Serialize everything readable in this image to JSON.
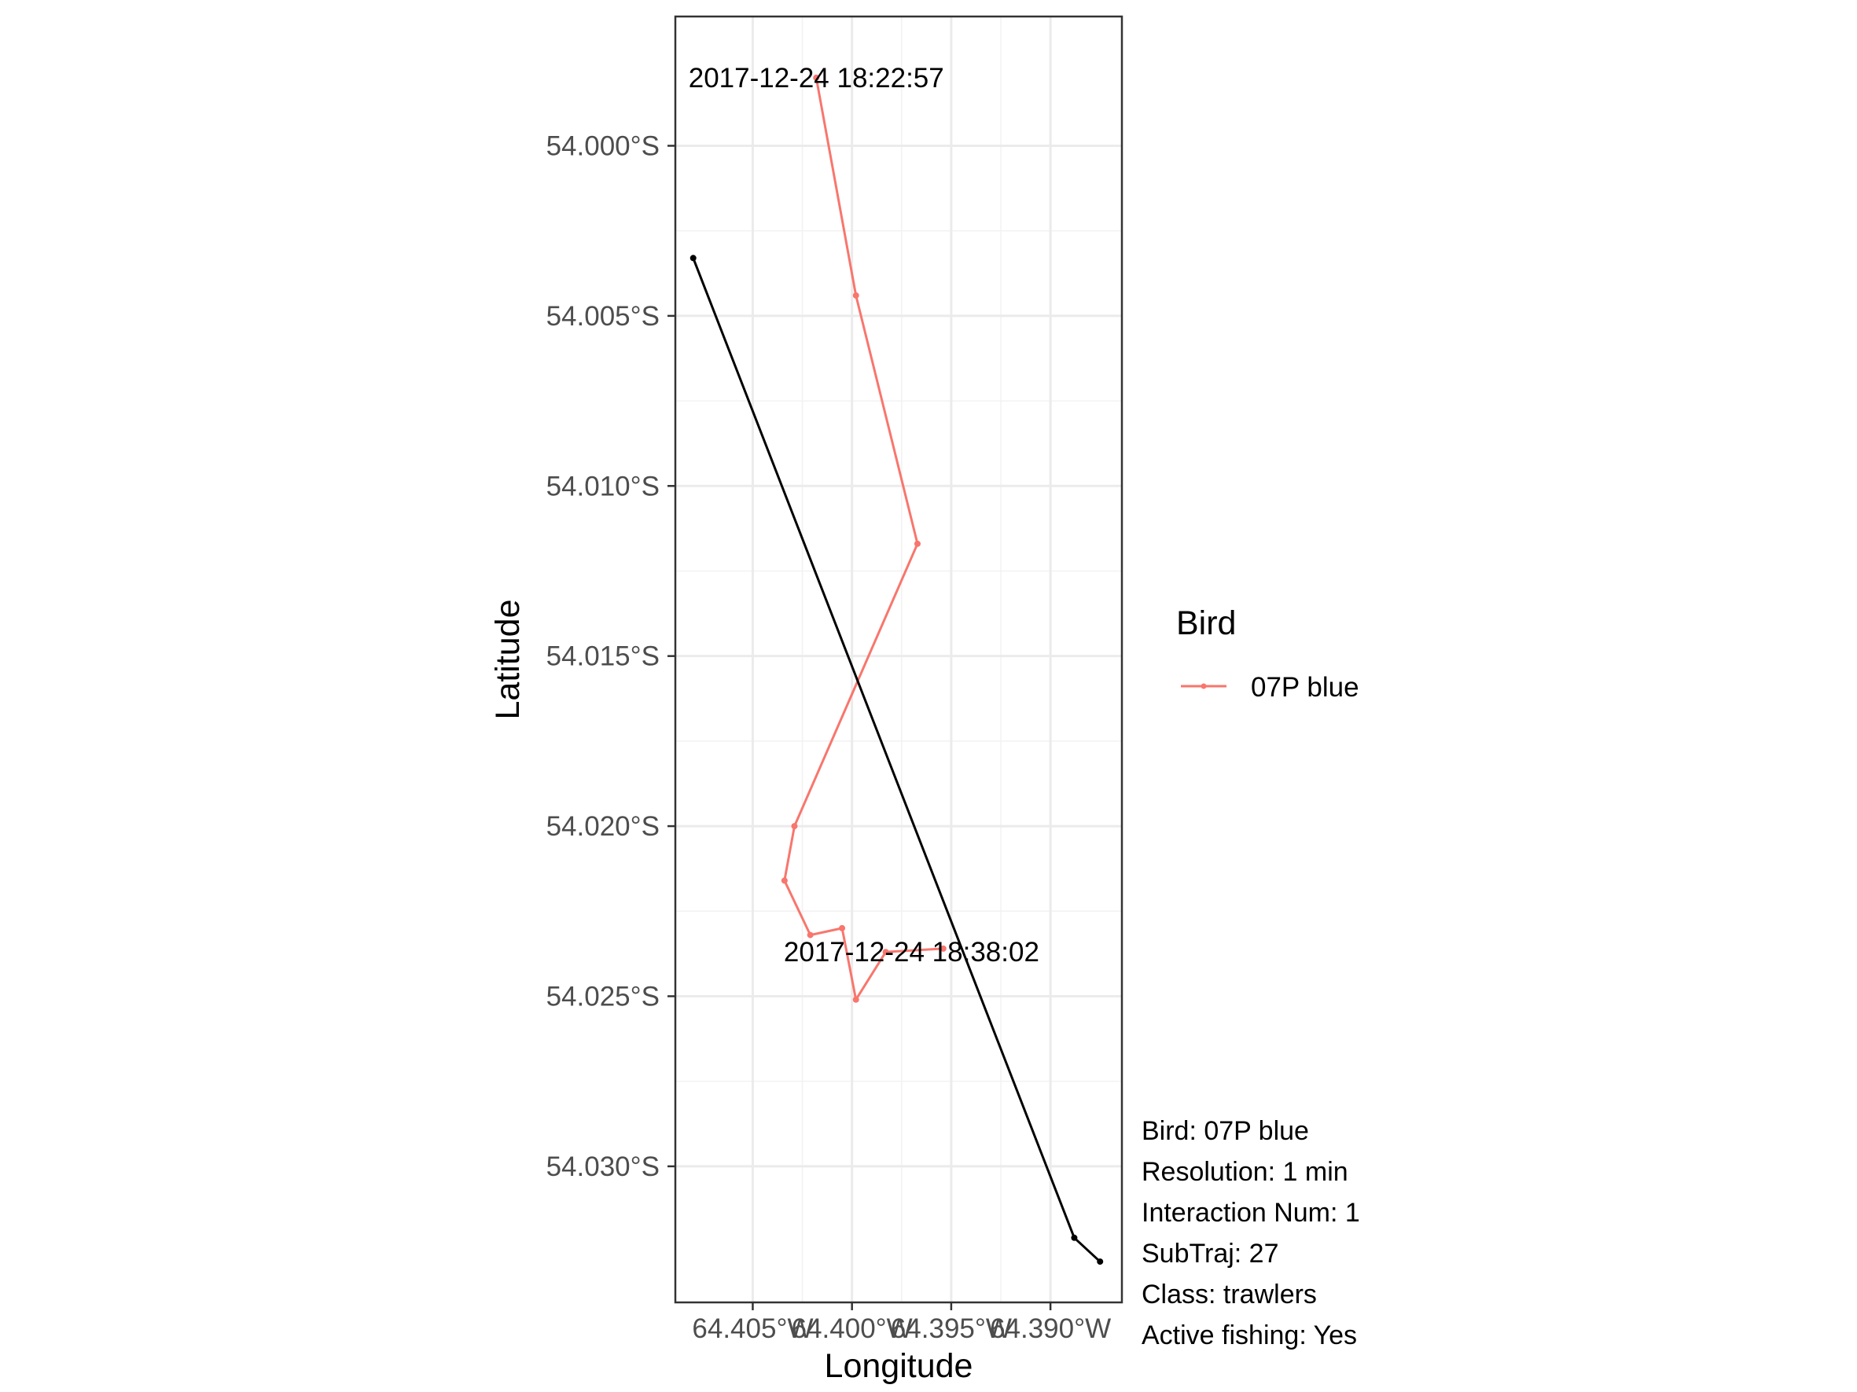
{
  "chart_data": {
    "type": "line",
    "xlabel": "Longitude",
    "ylabel": "Latitude",
    "xlim": [
      -64.4089,
      -64.3864
    ],
    "ylim": [
      -54.034,
      -53.9962
    ],
    "x_ticks": [
      -64.405,
      -64.4,
      -64.395,
      -64.39
    ],
    "x_tick_labels": [
      "64.405°W",
      "64.400°W",
      "64.395°W",
      "64.390°W"
    ],
    "y_ticks": [
      -54.0,
      -54.005,
      -54.01,
      -54.015,
      -54.02,
      -54.025,
      -54.03
    ],
    "y_tick_labels": [
      "54.000°S",
      "54.005°S",
      "54.010°S",
      "54.015°S",
      "54.020°S",
      "54.025°S",
      "54.030°S"
    ],
    "grid": true,
    "legend": {
      "title": "Bird",
      "position": "right"
    },
    "series": [
      {
        "name": "07P blue",
        "color": "#F8766D",
        "in_legend": true,
        "points": [
          {
            "x": -64.4018,
            "y": -53.998
          },
          {
            "x": -64.3998,
            "y": -54.0044
          },
          {
            "x": -64.3967,
            "y": -54.0117
          },
          {
            "x": -64.4029,
            "y": -54.02
          },
          {
            "x": -64.4034,
            "y": -54.0216
          },
          {
            "x": -64.4021,
            "y": -54.0232
          },
          {
            "x": -64.4005,
            "y": -54.023
          },
          {
            "x": -64.3998,
            "y": -54.0251
          },
          {
            "x": -64.3983,
            "y": -54.0237
          },
          {
            "x": -64.3954,
            "y": -54.0236
          }
        ]
      },
      {
        "name": "",
        "color": "#000000",
        "in_legend": false,
        "points": [
          {
            "x": -64.408,
            "y": -54.0033
          },
          {
            "x": -64.3888,
            "y": -54.0321
          },
          {
            "x": -64.3875,
            "y": -54.0328
          }
        ]
      }
    ],
    "annotations": [
      {
        "text": "2017-12-24 18:22:57",
        "x": -64.4018,
        "y": -53.998
      },
      {
        "text": "2017-12-24 18:38:02",
        "x": -64.397,
        "y": -54.0237
      }
    ]
  },
  "info": {
    "lines": [
      "Bird: 07P blue",
      "Resolution: 1 min",
      "Interaction Num: 1",
      "SubTraj: 27",
      "Class: trawlers",
      "Active fishing: Yes"
    ]
  }
}
